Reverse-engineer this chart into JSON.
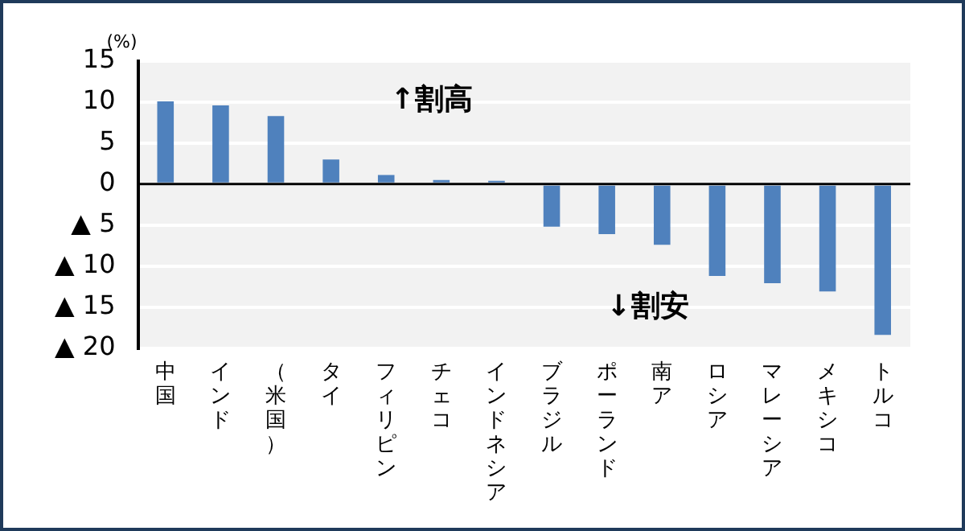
{
  "chart_data": {
    "type": "bar",
    "ylabel": "(%)",
    "categories": [
      "中国",
      "インド",
      "（米国）",
      "タイ",
      "フィリピン",
      "チェコ",
      "インドネシア",
      "ブラジル",
      "ポーランド",
      "南ア",
      "ロシア",
      "マレーシア",
      "メキシコ",
      "トルコ"
    ],
    "values": [
      10.1,
      9.6,
      8.3,
      3.0,
      1.1,
      0.5,
      0.4,
      -5.2,
      -6.1,
      -7.4,
      -11.2,
      -12.1,
      -13.1,
      -18.4
    ],
    "color": "#4f81bd",
    "ylim": [
      -20,
      15
    ],
    "yticks": [
      15,
      10,
      5,
      0,
      {
        "value": -5,
        "label": "▲ 5"
      },
      {
        "value": -10,
        "label": "▲ 10"
      },
      {
        "value": -15,
        "label": "▲ 15"
      },
      {
        "value": -20,
        "label": "▲ 20"
      }
    ],
    "grid": "y",
    "annotations": [
      "↑割高",
      "↓割安"
    ]
  }
}
